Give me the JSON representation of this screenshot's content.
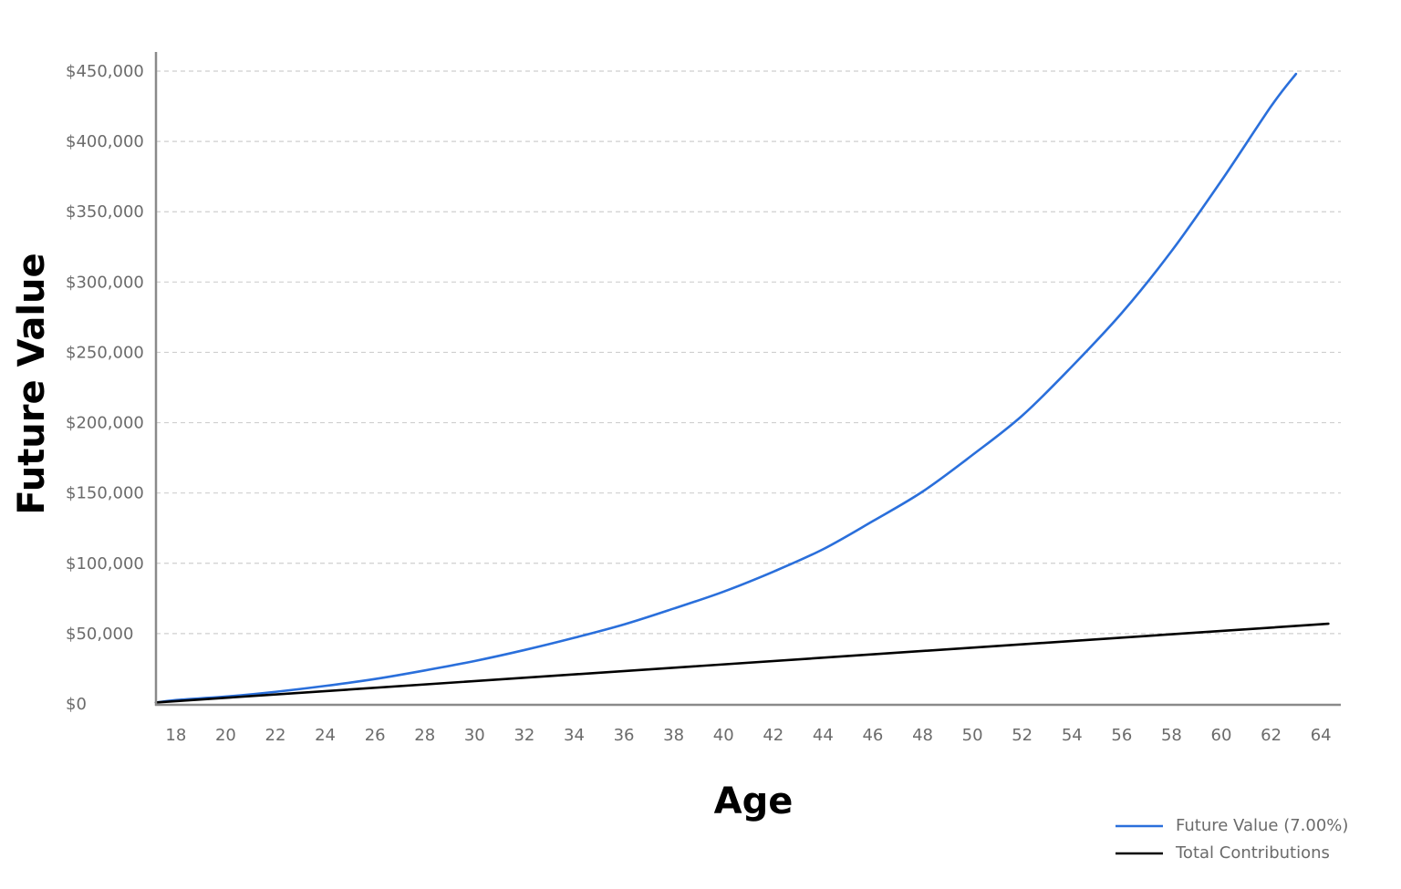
{
  "chart_data": {
    "type": "line",
    "xlabel": "Age",
    "ylabel": "Future Value",
    "xlim": [
      17.2,
      64.8
    ],
    "ylim": [
      0,
      450000
    ],
    "x_ticks": [
      18,
      20,
      22,
      24,
      26,
      28,
      30,
      32,
      34,
      36,
      38,
      40,
      42,
      44,
      46,
      48,
      50,
      52,
      54,
      56,
      58,
      60,
      62,
      64
    ],
    "y_ticks": [
      0,
      50000,
      100000,
      150000,
      200000,
      250000,
      300000,
      350000,
      400000,
      450000
    ],
    "y_tick_labels": [
      "$0",
      "$50,000",
      "$100,000",
      "$150,000",
      "$200,000",
      "$250,000",
      "$300,000",
      "$350,000",
      "$400,000",
      "$450,000"
    ],
    "grid": "horizontal dashed",
    "legend_position": "bottom-right",
    "series": [
      {
        "name": "Future Value (7.00%)",
        "color": "#2a6fdb",
        "x": [
          17.2,
          18,
          20,
          22,
          24,
          26,
          28,
          30,
          32,
          34,
          36,
          38,
          40,
          42,
          44,
          46,
          48,
          50,
          52,
          54,
          56,
          58,
          60,
          62,
          63
        ],
        "values": [
          1000,
          2700,
          5200,
          8600,
          12800,
          17700,
          23800,
          30500,
          38300,
          47000,
          56500,
          67800,
          79800,
          94000,
          110000,
          130000,
          151000,
          177000,
          205000,
          240000,
          278000,
          322000,
          372000,
          425000,
          448000
        ]
      },
      {
        "name": "Total Contributions",
        "color": "#000000",
        "x": [
          17.2,
          64.3
        ],
        "values": [
          1000,
          57000
        ]
      }
    ]
  }
}
